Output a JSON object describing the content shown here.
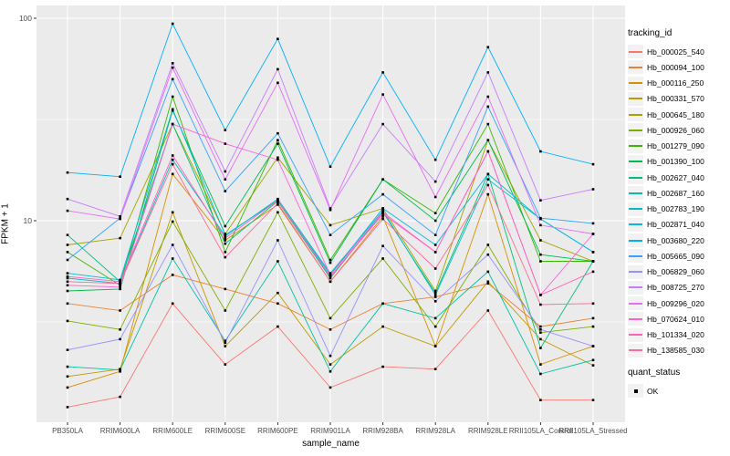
{
  "figure": {
    "panel_bg": "#EBEBEB",
    "grid_major": "#FFFFFF",
    "grid_minor": "#FFFFFF",
    "point_color": "#000000",
    "tick_color": "#333333",
    "tick_label_color": "#4d4d4d"
  },
  "x_axis": {
    "label": "sample_name"
  },
  "y_axis": {
    "label": "FPKM + 1",
    "ticks": [
      {
        "value": 10,
        "label": "10"
      },
      {
        "value": 100,
        "label": "100"
      }
    ],
    "minor_breaks": [
      3.1623,
      31.623
    ]
  },
  "legend": {
    "tracking_title": "tracking_id",
    "quant_title": "quant_status",
    "quant_items": [
      {
        "label": "OK"
      }
    ]
  },
  "chart_data": {
    "type": "line",
    "title": "",
    "xlabel": "sample_name",
    "ylabel": "FPKM + 1",
    "y_scale": "log10",
    "ylim": [
      1.02,
      115
    ],
    "grid": true,
    "legend_position": "right",
    "point_marker": "black-square",
    "categories": [
      "PB350LA",
      "RRIM600LA",
      "RRIM600LE",
      "RRIM600SE",
      "RRIM600PE",
      "RRIM901LA",
      "RRIM928BA",
      "RRIM928LA",
      "RRIM928LE",
      "RRII105LA_Control",
      "RRII105LA_Stressed"
    ],
    "series": [
      {
        "name": "Hb_000025_540",
        "color": "#F8766D",
        "values": [
          1.2,
          1.35,
          3.9,
          1.95,
          3.0,
          1.5,
          1.9,
          1.85,
          3.6,
          1.3,
          1.3
        ]
      },
      {
        "name": "Hb_000094_100",
        "color": "#EA8331",
        "values": [
          3.9,
          3.6,
          5.4,
          4.6,
          3.9,
          2.9,
          3.9,
          4.2,
          4.9,
          3.0,
          3.3
        ]
      },
      {
        "name": "Hb_000116_250",
        "color": "#D89000",
        "values": [
          1.5,
          1.8,
          17,
          8.0,
          12,
          5.0,
          10.5,
          2.4,
          13.5,
          1.95,
          2.4
        ]
      },
      {
        "name": "Hb_000331_570",
        "color": "#C09B00",
        "values": [
          1.7,
          1.85,
          11,
          2.4,
          4.4,
          1.95,
          3.0,
          2.4,
          5.0,
          2.6,
          1.93
        ]
      },
      {
        "name": "Hb_000645_180",
        "color": "#A3A500",
        "values": [
          7.6,
          8.2,
          30,
          8.6,
          20.5,
          9.5,
          11.5,
          4.5,
          25,
          8.0,
          6.3
        ]
      },
      {
        "name": "Hb_000926_060",
        "color": "#7CAE00",
        "values": [
          3.2,
          2.9,
          9.9,
          3.6,
          11,
          3.3,
          6.5,
          3.0,
          7.6,
          2.8,
          3.0
        ]
      },
      {
        "name": "Hb_001279_090",
        "color": "#39B600",
        "values": [
          7.0,
          4.8,
          41,
          7.0,
          25,
          6.4,
          16,
          10.9,
          30,
          6.3,
          6.3
        ]
      },
      {
        "name": "Hb_001390_100",
        "color": "#00BB4E",
        "values": [
          4.5,
          4.6,
          35,
          9.4,
          24,
          6.2,
          16,
          10,
          25,
          6.8,
          6.3
        ]
      },
      {
        "name": "Hb_002627_040",
        "color": "#00BF7D",
        "values": [
          8.5,
          5.0,
          30,
          7.7,
          12.5,
          5.2,
          11,
          4.4,
          17,
          2.35,
          6.3
        ]
      },
      {
        "name": "Hb_002687_160",
        "color": "#00C1A3",
        "values": [
          1.9,
          1.83,
          6.5,
          2.55,
          6.3,
          1.8,
          3.9,
          3.3,
          5.6,
          1.75,
          2.05
        ]
      },
      {
        "name": "Hb_002783_190",
        "color": "#00BFC4",
        "values": [
          5.2,
          4.9,
          20,
          8.4,
          12.8,
          5.5,
          11.2,
          4.3,
          16,
          10.2,
          7.0
        ]
      },
      {
        "name": "Hb_002871_040",
        "color": "#00BAE0",
        "values": [
          5.5,
          5.1,
          35.5,
          8.5,
          12.6,
          5.4,
          11.5,
          7.6,
          17,
          10.2,
          7.0
        ]
      },
      {
        "name": "Hb_003680_220",
        "color": "#00B0F6",
        "values": [
          17.3,
          16.5,
          94,
          28,
          79,
          18.5,
          54,
          20,
          72,
          22,
          19
        ]
      },
      {
        "name": "Hb_005665_090",
        "color": "#35A2FF",
        "values": [
          6.4,
          10.3,
          50,
          14,
          27,
          8.5,
          13.5,
          8.5,
          36.6,
          10.3,
          9.7
        ]
      },
      {
        "name": "Hb_006829_060",
        "color": "#9590FF",
        "values": [
          2.3,
          2.6,
          7.6,
          2.5,
          8.0,
          2.15,
          7.5,
          4.0,
          6.8,
          2.9,
          2.4
        ]
      },
      {
        "name": "Hb_008725_270",
        "color": "#C77CFF",
        "values": [
          12.8,
          10.5,
          60,
          17.5,
          56,
          11.5,
          30,
          15.6,
          54,
          12.6,
          14.3
        ]
      },
      {
        "name": "Hb_009296_020",
        "color": "#E76BF3",
        "values": [
          11.2,
          10.2,
          57,
          16,
          48,
          11.3,
          42,
          13.1,
          41,
          9.5,
          8.6
        ]
      },
      {
        "name": "Hb_070624_010",
        "color": "#FA62DB",
        "values": [
          4.8,
          4.7,
          30,
          24,
          20,
          5.4,
          11,
          7.0,
          22,
          4.3,
          8.6
        ]
      },
      {
        "name": "Hb_101334_020",
        "color": "#FF62BC",
        "values": [
          5.3,
          5.0,
          21,
          8.2,
          12.6,
          5.3,
          10.8,
          7.0,
          22,
          4.3,
          5.6
        ]
      },
      {
        "name": "Hb_138585_030",
        "color": "#FF6A98",
        "values": [
          5.0,
          4.9,
          19,
          6.6,
          12.2,
          5.0,
          10.2,
          5.8,
          15,
          3.85,
          3.9
        ]
      }
    ]
  }
}
